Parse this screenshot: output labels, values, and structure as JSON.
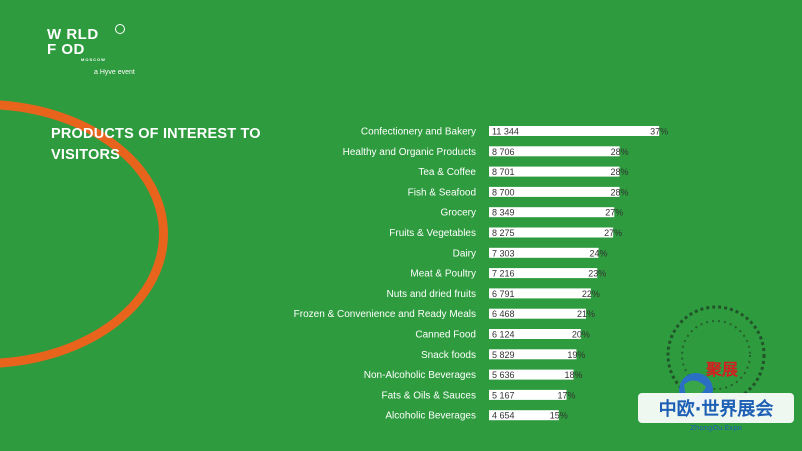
{
  "brand": {
    "logo_line1": "W RLD",
    "logo_line2": "F  OD",
    "logo_city": "MOSCOW",
    "logo_sub": "a Hyve event"
  },
  "title": "PRODUCTS OF INTEREST TO VISITORS",
  "colors": {
    "background": "#2e9b3e",
    "accent_ring": "#e8641d",
    "bar": "#ffffff"
  },
  "watermark": {
    "stamp": "聚展",
    "name": "中欧·世界展会",
    "latin": "ZhongOu Expo"
  },
  "chart_data": {
    "type": "bar",
    "orientation": "horizontal",
    "categories": [
      "Confectionery and Bakery",
      "Healthy and Organic Products",
      "Tea & Coffee",
      "Fish & Seafood",
      "Grocery",
      "Fruits & Vegetables",
      "Dairy",
      "Meat & Poultry",
      "Nuts and dried fruits",
      "Frozen & Convenience and Ready Meals",
      "Canned Food",
      "Snack foods",
      "Non-Alcoholic Beverages",
      "Fats & Oils & Sauces",
      "Alcoholic Beverages"
    ],
    "values": [
      11344,
      8706,
      8701,
      8700,
      8349,
      8275,
      7303,
      7216,
      6791,
      6468,
      6124,
      5829,
      5636,
      5167,
      4654
    ],
    "value_labels": [
      "11 344",
      "8 706",
      "8 701",
      "8 700",
      "8 349",
      "8 275",
      "7 303",
      "7 216",
      "6 791",
      "6 468",
      "6 124",
      "5 829",
      "5 636",
      "5 167",
      "4 654"
    ],
    "percent_labels": [
      "37%",
      "28%",
      "28%",
      "28%",
      "27%",
      "27%",
      "24%",
      "23%",
      "22%",
      "21%",
      "20%",
      "19%",
      "18%",
      "17%",
      "15%"
    ],
    "xlim": [
      0,
      12000
    ],
    "grid": false,
    "legend": "none"
  }
}
